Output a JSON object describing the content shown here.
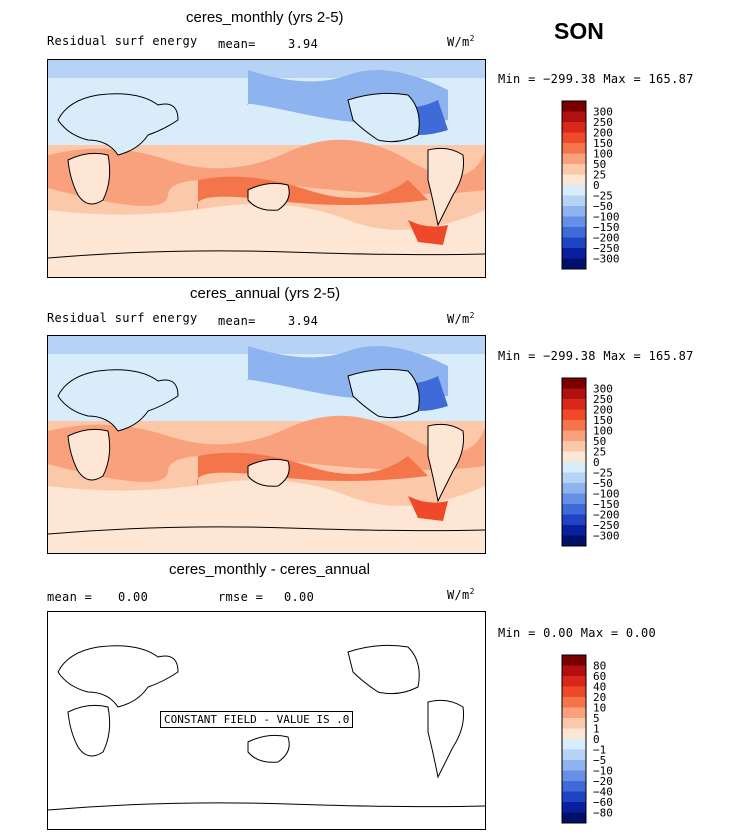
{
  "figure": {
    "season": "SON",
    "units_prefix": "W/m",
    "units_sup": "2"
  },
  "panels": [
    {
      "title": "ceres_monthly (yrs 2-5)",
      "left_label": "Residual surf energy",
      "stat1_label": "mean=",
      "stat1_value": "3.94",
      "stat2_label": "",
      "stat2_value": "",
      "minmax": "Min = −299.38 Max = 165.87",
      "colorbar_labels": [
        "300",
        "250",
        "200",
        "150",
        "100",
        "50",
        "25",
        "0",
        "−25",
        "−50",
        "−100",
        "−150",
        "−200",
        "−250",
        "−300"
      ],
      "colorbar_colors": [
        "#7a0000",
        "#b01010",
        "#d9271a",
        "#ee4a2a",
        "#f5754a",
        "#f9a07c",
        "#fcc8aa",
        "#fde6d4",
        "#d9ecf9",
        "#b6d3f5",
        "#8db4ef",
        "#6690e6",
        "#3f6bd9",
        "#1e44c4",
        "#0a1f9e",
        "#00106a"
      ],
      "constant_field": ""
    },
    {
      "title": "ceres_annual (yrs 2-5)",
      "left_label": "Residual surf energy",
      "stat1_label": "mean=",
      "stat1_value": "3.94",
      "stat2_label": "",
      "stat2_value": "",
      "minmax": "Min = −299.38 Max = 165.87",
      "colorbar_labels": [
        "300",
        "250",
        "200",
        "150",
        "100",
        "50",
        "25",
        "0",
        "−25",
        "−50",
        "−100",
        "−150",
        "−200",
        "−250",
        "−300"
      ],
      "colorbar_colors": [
        "#7a0000",
        "#b01010",
        "#d9271a",
        "#ee4a2a",
        "#f5754a",
        "#f9a07c",
        "#fcc8aa",
        "#fde6d4",
        "#d9ecf9",
        "#b6d3f5",
        "#8db4ef",
        "#6690e6",
        "#3f6bd9",
        "#1e44c4",
        "#0a1f9e",
        "#00106a"
      ],
      "constant_field": ""
    },
    {
      "title": "ceres_monthly - ceres_annual",
      "left_label": "",
      "stat1_label": "mean =",
      "stat1_value": "0.00",
      "stat2_label": "rmse =",
      "stat2_value": "0.00",
      "minmax": "Min =   0.00 Max =   0.00",
      "colorbar_labels": [
        "80",
        "60",
        "40",
        "20",
        "10",
        "5",
        "1",
        "0",
        "−1",
        "−5",
        "−10",
        "−20",
        "−40",
        "−60",
        "−80"
      ],
      "colorbar_colors": [
        "#7a0000",
        "#b01010",
        "#d9271a",
        "#ee4a2a",
        "#f5754a",
        "#f9a07c",
        "#fcc8aa",
        "#fde6d4",
        "#d9ecf9",
        "#b6d3f5",
        "#8db4ef",
        "#6690e6",
        "#3f6bd9",
        "#1e44c4",
        "#0a1f9e",
        "#00106a"
      ],
      "constant_field": "CONSTANT FIELD - VALUE IS .0"
    }
  ],
  "chart_data": [
    {
      "type": "heatmap",
      "title": "ceres_monthly (yrs 2-5)",
      "variable": "Residual surf energy",
      "units": "W/m2",
      "mean": 3.94,
      "min": -299.38,
      "max": 165.87,
      "levels": [
        -300,
        -250,
        -200,
        -150,
        -100,
        -50,
        -25,
        0,
        25,
        50,
        100,
        150,
        200,
        250,
        300
      ]
    },
    {
      "type": "heatmap",
      "title": "ceres_annual (yrs 2-5)",
      "variable": "Residual surf energy",
      "units": "W/m2",
      "mean": 3.94,
      "min": -299.38,
      "max": 165.87,
      "levels": [
        -300,
        -250,
        -200,
        -150,
        -100,
        -50,
        -25,
        0,
        25,
        50,
        100,
        150,
        200,
        250,
        300
      ]
    },
    {
      "type": "heatmap",
      "title": "ceres_monthly - ceres_annual",
      "units": "W/m2",
      "mean": 0.0,
      "rmse": 0.0,
      "min": 0.0,
      "max": 0.0,
      "constant_value": 0.0,
      "levels": [
        -80,
        -60,
        -40,
        -20,
        -10,
        -5,
        -1,
        0,
        1,
        5,
        10,
        20,
        40,
        60,
        80
      ]
    }
  ]
}
